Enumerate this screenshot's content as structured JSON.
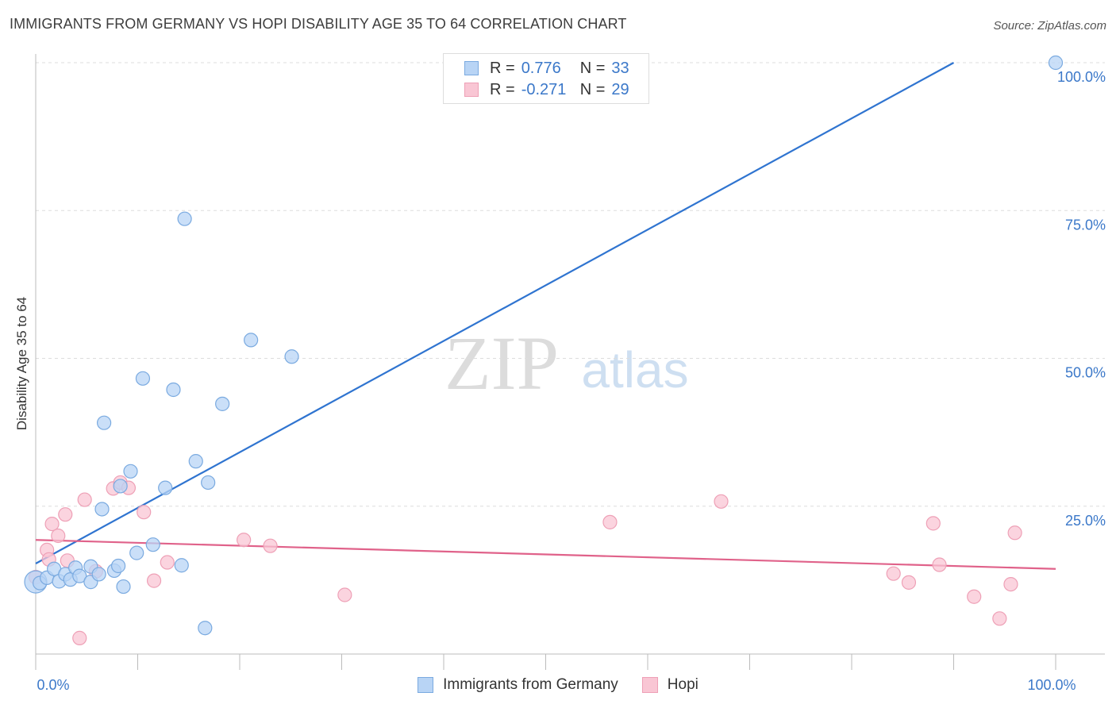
{
  "title": "IMMIGRANTS FROM GERMANY VS HOPI DISABILITY AGE 35 TO 64 CORRELATION CHART",
  "source": "Source: ZipAtlas.com",
  "watermark": {
    "zip": "ZIP",
    "atlas": "atlas"
  },
  "legend": {
    "rows": [
      {
        "r_label": "R =",
        "r_value": "0.776",
        "n_label": "N =",
        "n_value": "33"
      },
      {
        "r_label": "R =",
        "r_value": "-0.271",
        "n_label": "N =",
        "n_value": "29"
      }
    ]
  },
  "colors": {
    "blue_fill": "#b8d4f5",
    "blue_stroke": "#7aaae0",
    "blue_line": "#2f74d0",
    "pink_fill": "#f9c6d4",
    "pink_stroke": "#eea0b6",
    "pink_line": "#e0628a",
    "grid": "#dddddd",
    "tick_label": "#3b78c9"
  },
  "chart_data": {
    "type": "scatter",
    "title": "IMMIGRANTS FROM GERMANY VS HOPI DISABILITY AGE 35 TO 64 CORRELATION CHART",
    "xlabel": "",
    "ylabel": "Disability Age 35 to 64",
    "xlim": [
      0,
      100
    ],
    "ylim": [
      0,
      100
    ],
    "x_tick_labels": [
      {
        "value": 0,
        "label": "0.0%"
      },
      {
        "value": 100,
        "label": "100.0%"
      }
    ],
    "y_tick_labels": [
      {
        "value": 25,
        "label": "25.0%"
      },
      {
        "value": 50,
        "label": "50.0%"
      },
      {
        "value": 75,
        "label": "75.0%"
      },
      {
        "value": 100,
        "label": "100.0%"
      }
    ],
    "series": [
      {
        "name": "Immigrants from Germany",
        "color": "blue",
        "points": [
          [
            0.0,
            12.2
          ],
          [
            0.4,
            12.0
          ],
          [
            1.1,
            12.9
          ],
          [
            1.8,
            14.4
          ],
          [
            2.3,
            12.3
          ],
          [
            2.9,
            13.5
          ],
          [
            3.4,
            12.6
          ],
          [
            3.9,
            14.6
          ],
          [
            4.3,
            13.2
          ],
          [
            5.4,
            14.8
          ],
          [
            5.4,
            12.2
          ],
          [
            6.2,
            13.5
          ],
          [
            6.5,
            24.5
          ],
          [
            6.7,
            39.1
          ],
          [
            7.7,
            14.1
          ],
          [
            8.1,
            14.9
          ],
          [
            8.3,
            28.4
          ],
          [
            8.6,
            11.4
          ],
          [
            9.3,
            30.9
          ],
          [
            9.9,
            17.1
          ],
          [
            10.5,
            46.6
          ],
          [
            11.5,
            18.5
          ],
          [
            12.7,
            28.1
          ],
          [
            13.5,
            44.7
          ],
          [
            14.3,
            15.0
          ],
          [
            14.6,
            73.6
          ],
          [
            15.7,
            32.6
          ],
          [
            16.6,
            4.4
          ],
          [
            16.9,
            29.0
          ],
          [
            18.3,
            42.3
          ],
          [
            21.1,
            53.1
          ],
          [
            25.1,
            50.3
          ],
          [
            100.0,
            100.0
          ]
        ]
      },
      {
        "name": "Hopi",
        "color": "pink",
        "points": [
          [
            0.0,
            13.0
          ],
          [
            1.1,
            17.6
          ],
          [
            1.3,
            16.0
          ],
          [
            1.6,
            22.0
          ],
          [
            2.2,
            20.0
          ],
          [
            2.9,
            23.6
          ],
          [
            3.1,
            15.8
          ],
          [
            4.3,
            2.7
          ],
          [
            4.8,
            26.1
          ],
          [
            5.9,
            14.0
          ],
          [
            7.6,
            28.0
          ],
          [
            8.3,
            29.0
          ],
          [
            9.1,
            28.1
          ],
          [
            10.6,
            24.0
          ],
          [
            11.6,
            12.4
          ],
          [
            12.9,
            15.5
          ],
          [
            20.4,
            19.3
          ],
          [
            23.0,
            18.3
          ],
          [
            30.3,
            10.0
          ],
          [
            56.3,
            22.3
          ],
          [
            67.2,
            25.8
          ],
          [
            84.1,
            13.6
          ],
          [
            85.6,
            12.1
          ],
          [
            88.0,
            22.1
          ],
          [
            88.6,
            15.1
          ],
          [
            92.0,
            9.7
          ],
          [
            94.5,
            6.0
          ],
          [
            95.6,
            11.8
          ],
          [
            96.0,
            20.5
          ]
        ]
      }
    ],
    "trendlines": [
      {
        "series": "Immigrants from Germany",
        "x": [
          0,
          90
        ],
        "y": [
          15.3,
          100.0
        ]
      },
      {
        "series": "Hopi",
        "x": [
          0,
          100
        ],
        "y": [
          19.3,
          14.4
        ]
      }
    ]
  },
  "bottom_legend": {
    "items": [
      {
        "label": "Immigrants from Germany",
        "color": "blue"
      },
      {
        "label": "Hopi",
        "color": "pink"
      }
    ]
  }
}
